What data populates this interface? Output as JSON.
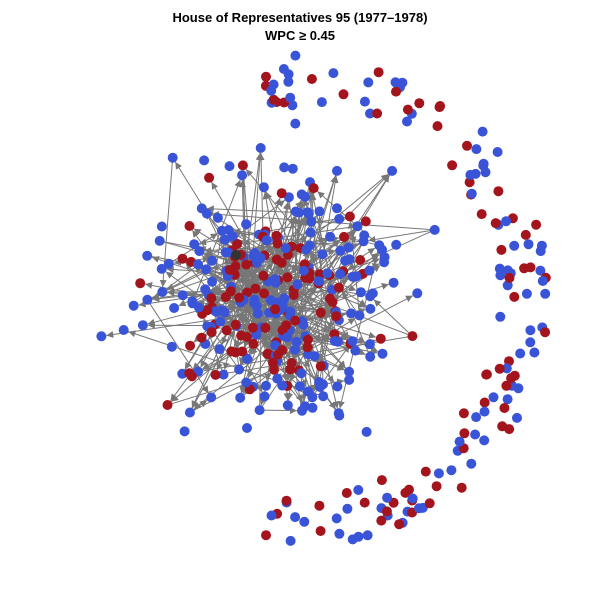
{
  "title": "House of Representatives 95 (1977–1978)",
  "subtitle": "WPC ≥ 0.45"
}
